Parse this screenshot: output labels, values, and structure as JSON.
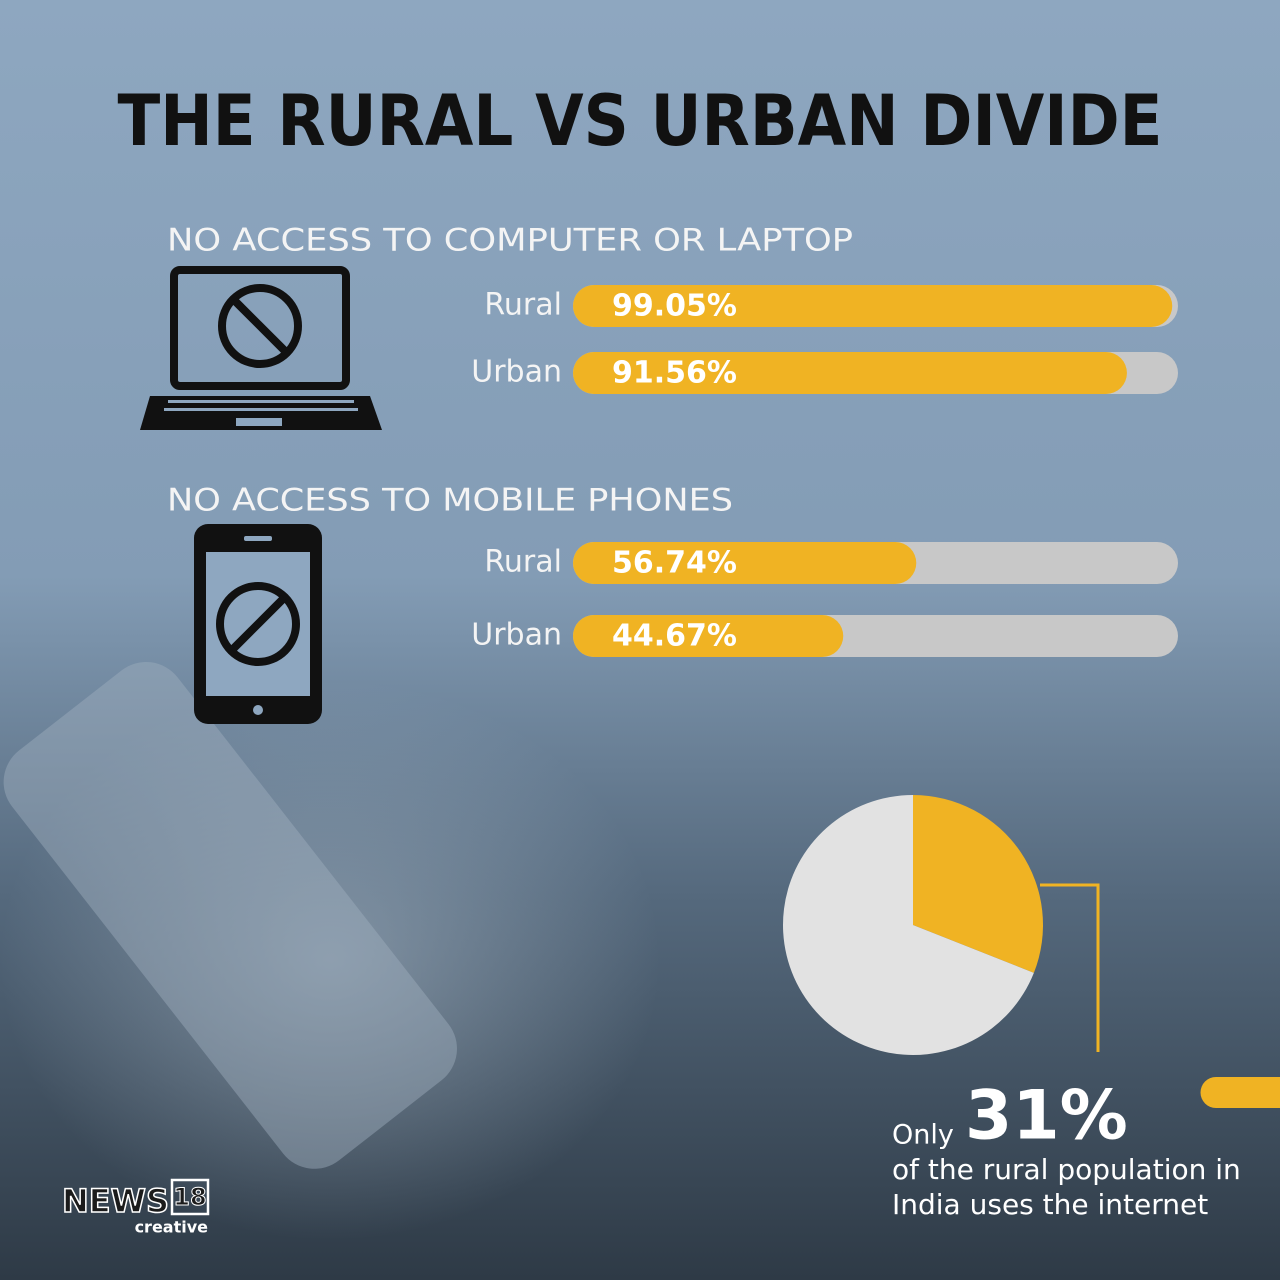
{
  "title": "THE RURAL VS URBAN DIVIDE",
  "chart_data": [
    {
      "type": "bar",
      "title": "NO ACCESS TO COMPUTER OR LAPTOP",
      "categories": [
        "Rural",
        "Urban"
      ],
      "values": [
        99.05,
        91.56
      ],
      "value_labels": [
        "99.05%",
        "91.56%"
      ],
      "xlim": [
        0,
        100
      ],
      "color": "#f0b323",
      "track_color": "#c8c8c8"
    },
    {
      "type": "bar",
      "title": "NO ACCESS TO MOBILE PHONES",
      "categories": [
        "Rural",
        "Urban"
      ],
      "values": [
        56.74,
        44.67
      ],
      "value_labels": [
        "56.74%",
        "44.67%"
      ],
      "xlim": [
        0,
        100
      ],
      "color": "#f0b323",
      "track_color": "#c8c8c8"
    },
    {
      "type": "pie",
      "values": [
        31,
        69
      ],
      "value_labels": [
        "31%",
        null
      ],
      "colors": [
        "#f0b323",
        "#e2e2e2"
      ],
      "annotation": {
        "prefix": "Only",
        "lines": [
          "of the rural population in",
          "India uses the internet"
        ]
      }
    }
  ],
  "brand": {
    "name": "NEWS",
    "number": "18",
    "sub": "creative"
  }
}
